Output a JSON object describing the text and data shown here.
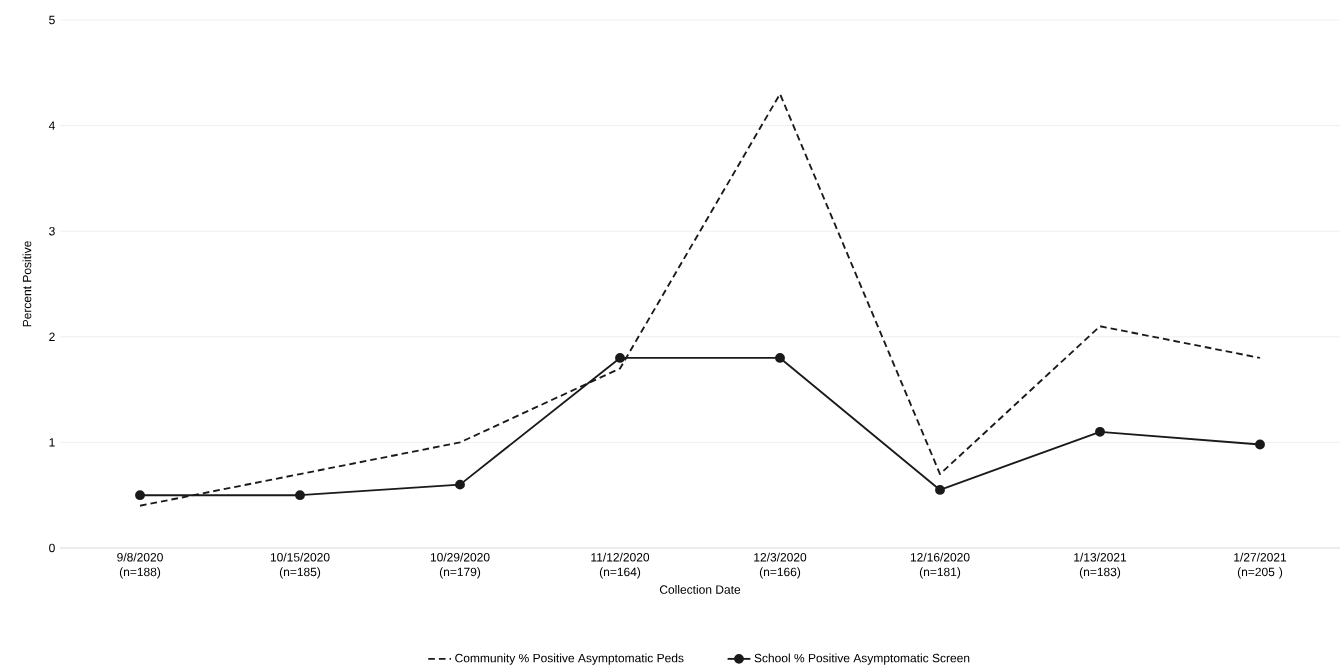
{
  "chart_data": {
    "type": "line",
    "xlabel": "Collection Date",
    "ylabel": "Percent Positive",
    "categories": [
      "9/8/2020 (n=188)",
      "10/15/2020 (n=185)",
      "10/29/2020 (n=179)",
      "11/12/2020 (n=164)",
      "12/3/2020 (n=166)",
      "12/16/2020 (n=181)",
      "1/13/2021 (n=183)",
      "1/27/2021 (n=205 )"
    ],
    "series": [
      {
        "name": "Community % Positive Asymptomatic Peds",
        "color": "#1a1a1a",
        "line_style": "dashed",
        "marker": "none",
        "values": [
          0.4,
          0.7,
          1.0,
          1.7,
          4.3,
          0.7,
          2.1,
          1.8
        ]
      },
      {
        "name": "School % Positive Asymptomatic Screen",
        "color": "#1a1a1a",
        "line_style": "solid",
        "marker": "circle",
        "values": [
          0.5,
          0.5,
          0.6,
          1.8,
          1.8,
          0.55,
          1.1,
          0.98
        ]
      }
    ],
    "ylim": [
      0,
      5
    ],
    "yticks": [
      0,
      1,
      2,
      3,
      4,
      5
    ],
    "grid": "y",
    "legend": "bottom"
  }
}
